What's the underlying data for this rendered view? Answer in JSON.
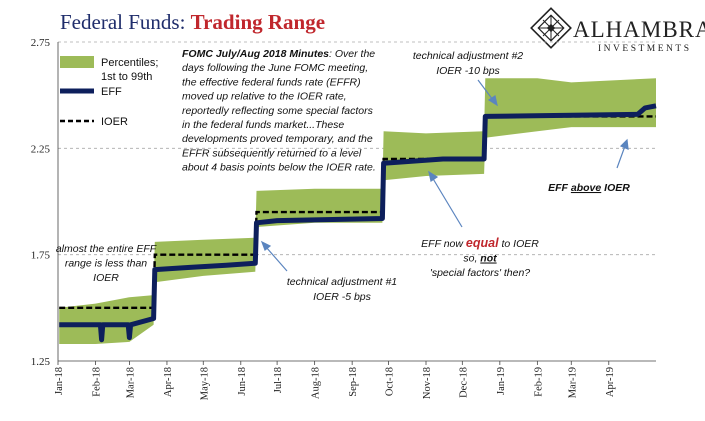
{
  "title": {
    "part1": "Federal Funds: ",
    "part2": "Trading Range"
  },
  "logo": {
    "name": "ALHAMBRA",
    "sub": "INVESTMENTS"
  },
  "colors": {
    "band": "#9dbb58",
    "eff": "#0d1f5c",
    "ioer": "#000000",
    "title": "#1f2d6b",
    "accent": "#c0272d",
    "arrow": "#5b85bf"
  },
  "chart_data": {
    "type": "line",
    "ylim": [
      1.25,
      2.75
    ],
    "yticks": [
      "1.25",
      "1.75",
      "2.25",
      "2.75"
    ],
    "grid": "dashed horizontal",
    "x_start": "2018-01-01",
    "x_end": "2019-05-10",
    "xticks": [
      {
        "label": "Jan-18",
        "date": "2018-01-01"
      },
      {
        "label": "Feb-18",
        "date": "2018-02-01"
      },
      {
        "label": "Mar-18",
        "date": "2018-03-01"
      },
      {
        "label": "Apr-18",
        "date": "2018-04-01"
      },
      {
        "label": "May-18",
        "date": "2018-05-01"
      },
      {
        "label": "Jun-18",
        "date": "2018-06-01"
      },
      {
        "label": "Jul-18",
        "date": "2018-07-01"
      },
      {
        "label": "Aug-18",
        "date": "2018-08-01"
      },
      {
        "label": "Sep-18",
        "date": "2018-09-01"
      },
      {
        "label": "Oct-18",
        "date": "2018-10-01"
      },
      {
        "label": "Nov-18",
        "date": "2018-11-01"
      },
      {
        "label": "Dec-18",
        "date": "2018-12-01"
      },
      {
        "label": "Jan-19",
        "date": "2019-01-01"
      },
      {
        "label": "Feb-19",
        "date": "2019-02-01"
      },
      {
        "label": "Mar-19",
        "date": "2019-03-01"
      },
      {
        "label": "Apr-19",
        "date": "2019-04-01"
      }
    ],
    "series": [
      {
        "name": "Percentiles; 1st to 99th",
        "kind": "band",
        "points": [
          {
            "x": "2018-01-02",
            "lo": 1.33,
            "hi": 1.5
          },
          {
            "x": "2018-02-01",
            "lo": 1.33,
            "hi": 1.52
          },
          {
            "x": "2018-03-01",
            "lo": 1.34,
            "hi": 1.55
          },
          {
            "x": "2018-03-21",
            "lo": 1.42,
            "hi": 1.56
          },
          {
            "x": "2018-03-22",
            "lo": 1.62,
            "hi": 1.81
          },
          {
            "x": "2018-05-01",
            "lo": 1.65,
            "hi": 1.82
          },
          {
            "x": "2018-06-13",
            "lo": 1.67,
            "hi": 1.83
          },
          {
            "x": "2018-06-14",
            "lo": 1.88,
            "hi": 2.05
          },
          {
            "x": "2018-08-01",
            "lo": 1.9,
            "hi": 2.06
          },
          {
            "x": "2018-09-26",
            "lo": 1.9,
            "hi": 2.06
          },
          {
            "x": "2018-09-27",
            "lo": 2.1,
            "hi": 2.33
          },
          {
            "x": "2018-11-01",
            "lo": 2.12,
            "hi": 2.32
          },
          {
            "x": "2018-12-19",
            "lo": 2.13,
            "hi": 2.33
          },
          {
            "x": "2018-12-20",
            "lo": 2.3,
            "hi": 2.58
          },
          {
            "x": "2019-02-01",
            "lo": 2.33,
            "hi": 2.58
          },
          {
            "x": "2019-03-01",
            "lo": 2.35,
            "hi": 2.56
          },
          {
            "x": "2019-05-10",
            "lo": 2.35,
            "hi": 2.58
          }
        ]
      },
      {
        "name": "EFF",
        "kind": "line",
        "points": [
          {
            "x": "2018-01-02",
            "y": 1.42
          },
          {
            "x": "2018-02-05",
            "y": 1.42
          },
          {
            "x": "2018-02-06",
            "y": 1.35
          },
          {
            "x": "2018-02-07",
            "y": 1.42
          },
          {
            "x": "2018-02-28",
            "y": 1.42
          },
          {
            "x": "2018-03-01",
            "y": 1.36
          },
          {
            "x": "2018-03-02",
            "y": 1.42
          },
          {
            "x": "2018-03-21",
            "y": 1.45
          },
          {
            "x": "2018-03-22",
            "y": 1.68
          },
          {
            "x": "2018-04-20",
            "y": 1.69
          },
          {
            "x": "2018-05-20",
            "y": 1.7
          },
          {
            "x": "2018-06-13",
            "y": 1.71
          },
          {
            "x": "2018-06-14",
            "y": 1.9
          },
          {
            "x": "2018-07-01",
            "y": 1.91
          },
          {
            "x": "2018-09-26",
            "y": 1.92
          },
          {
            "x": "2018-09-27",
            "y": 2.18
          },
          {
            "x": "2018-11-15",
            "y": 2.2
          },
          {
            "x": "2018-12-19",
            "y": 2.2
          },
          {
            "x": "2018-12-20",
            "y": 2.4
          },
          {
            "x": "2019-04-25",
            "y": 2.41
          },
          {
            "x": "2019-05-01",
            "y": 2.44
          },
          {
            "x": "2019-05-10",
            "y": 2.45
          }
        ]
      },
      {
        "name": "IOER",
        "kind": "dashed",
        "points": [
          {
            "x": "2018-01-02",
            "y": 1.5
          },
          {
            "x": "2018-03-21",
            "y": 1.5
          },
          {
            "x": "2018-03-22",
            "y": 1.75
          },
          {
            "x": "2018-06-13",
            "y": 1.75
          },
          {
            "x": "2018-06-14",
            "y": 1.95
          },
          {
            "x": "2018-09-26",
            "y": 1.95
          },
          {
            "x": "2018-09-27",
            "y": 2.2
          },
          {
            "x": "2018-12-19",
            "y": 2.2
          },
          {
            "x": "2018-12-20",
            "y": 2.4
          },
          {
            "x": "2019-05-10",
            "y": 2.4
          }
        ]
      }
    ],
    "annotations": [
      {
        "id": "fomc",
        "lines": [
          [
            {
              "t": "FOMC July/Aug 2018 Minutes",
              "b": true
            },
            {
              "t": ": Over the"
            }
          ],
          [
            {
              "t": "days following the June FOMC meeting,"
            }
          ],
          [
            {
              "t": "the effective federal funds rate (EFFR)"
            }
          ],
          [
            {
              "t": "moved up relative to the IOER rate,"
            }
          ],
          [
            {
              "t": "reportedly reflecting some special factors"
            }
          ],
          [
            {
              "t": "in the federal funds market...These"
            }
          ],
          [
            {
              "t": "developments proved temporary, and the"
            }
          ],
          [
            {
              "t": "EFFR subsequently returned to a level"
            }
          ],
          [
            {
              "t": "about 4 basis points below the IOER rate."
            }
          ]
        ]
      },
      {
        "id": "tech2",
        "lines": [
          [
            {
              "t": "technical adjustment #2"
            }
          ],
          [
            {
              "t": "IOER -10 bps"
            }
          ]
        ]
      },
      {
        "id": "eff-above",
        "lines": [
          [
            {
              "t": "EFF "
            },
            {
              "t": "above",
              "u": true
            },
            {
              "t": " IOER"
            }
          ]
        ]
      },
      {
        "id": "eff-equal",
        "lines": [
          [
            {
              "t": "EFF now "
            },
            {
              "t": "equal",
              "b": true,
              "red": true
            },
            {
              "t": " to IOER"
            }
          ],
          [
            {
              "t": "so, "
            },
            {
              "t": "not",
              "b": true,
              "u": true
            }
          ],
          [
            {
              "t": "'special factors' then?"
            }
          ]
        ]
      },
      {
        "id": "almost",
        "lines": [
          [
            {
              "t": "almost the entire EFF"
            }
          ],
          [
            {
              "t": "range is less than"
            }
          ],
          [
            {
              "t": "IOER"
            }
          ]
        ]
      },
      {
        "id": "tech1",
        "lines": [
          [
            {
              "t": "technical adjustment #1"
            }
          ],
          [
            {
              "t": "IOER -5 bps"
            }
          ]
        ]
      }
    ]
  }
}
